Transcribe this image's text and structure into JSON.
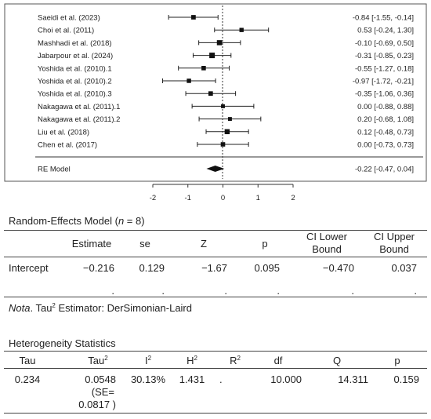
{
  "chart_data": {
    "type": "forest",
    "studies": [
      {
        "label": "Saeidi et al. (2023)",
        "est": -0.84,
        "lo": -1.55,
        "hi": -0.14,
        "ci_text": "-0.84 [-1.55, -0.14]"
      },
      {
        "label": "Choi et al. (2011)",
        "est": 0.53,
        "lo": -0.24,
        "hi": 1.3,
        "ci_text": "0.53 [-0.24, 1.30]"
      },
      {
        "label": "Mashhadi et al. (2018)",
        "est": -0.1,
        "lo": -0.69,
        "hi": 0.5,
        "ci_text": "-0.10 [-0.69, 0.50]"
      },
      {
        "label": "Jabarpour et al. (2024)",
        "est": -0.31,
        "lo": -0.85,
        "hi": 0.23,
        "ci_text": "-0.31 [-0.85, 0.23]"
      },
      {
        "label": "Yoshida et al. (2010).1",
        "est": -0.55,
        "lo": -1.27,
        "hi": 0.18,
        "ci_text": "-0.55 [-1.27, 0.18]"
      },
      {
        "label": "Yoshida et al. (2010).2",
        "est": -0.97,
        "lo": -1.72,
        "hi": -0.21,
        "ci_text": "-0.97 [-1.72, -0.21]"
      },
      {
        "label": "Yoshida et al. (2010).3",
        "est": -0.35,
        "lo": -1.06,
        "hi": 0.36,
        "ci_text": "-0.35 [-1.06, 0.36]"
      },
      {
        "label": "Nakagawa et al. (2011).1",
        "est": 0.0,
        "lo": -0.88,
        "hi": 0.88,
        "ci_text": "0.00 [-0.88, 0.88]"
      },
      {
        "label": "Nakagawa et al. (2011).2",
        "est": 0.2,
        "lo": -0.68,
        "hi": 1.08,
        "ci_text": "0.20 [-0.68, 1.08]"
      },
      {
        "label": "Liu et al. (2018)",
        "est": 0.12,
        "lo": -0.48,
        "hi": 0.73,
        "ci_text": "0.12 [-0.48, 0.73]"
      },
      {
        "label": "Chen et al. (2017)",
        "est": 0.0,
        "lo": -0.73,
        "hi": 0.73,
        "ci_text": "0.00 [-0.73, 0.73]"
      }
    ],
    "summary": {
      "label": "RE Model",
      "est": -0.22,
      "lo": -0.47,
      "hi": 0.04,
      "ci_text": "-0.22 [-0.47, 0.04]"
    },
    "xlim": [
      -2,
      2
    ],
    "xticks": [
      "-2",
      "-1",
      "0",
      "1",
      "2"
    ],
    "reference_line": 0
  },
  "re_table": {
    "title_prefix": "Random-Effects Model (",
    "title_n": "n",
    "title_suffix": " = 8)",
    "headers": [
      "Estimate",
      "se",
      "Z",
      "p",
      "CI Lower",
      "Bound",
      "CI Upper",
      "Bound"
    ],
    "row_label": "Intercept",
    "row": [
      "−0.216",
      "0.129",
      "−1.67",
      "0.095",
      "−0.470",
      "0.037"
    ],
    "dots": [
      ".",
      ".",
      ".",
      ".",
      ".",
      "."
    ]
  },
  "nota": {
    "label": "Nota",
    "text_pre": ". Tau",
    "sup": "2",
    "text_post": " Estimator: DerSimonian-Laird"
  },
  "het_table": {
    "title": "Heterogeneity Statistics",
    "headers": [
      {
        "base": "Tau",
        "sup": ""
      },
      {
        "base": "Tau",
        "sup": "2"
      },
      {
        "base": "I",
        "sup": "2"
      },
      {
        "base": "H",
        "sup": "2"
      },
      {
        "base": "R",
        "sup": "2"
      },
      {
        "base": "df",
        "sup": ""
      },
      {
        "base": "Q",
        "sup": ""
      },
      {
        "base": "p",
        "sup": ""
      }
    ],
    "row": [
      "0.234",
      "0.0548",
      "30.13%",
      "1.431",
      ".",
      "10.000",
      "14.311",
      "0.159"
    ],
    "tau2_se_line1": "(SE=",
    "tau2_se_line2": "0.0817 )"
  }
}
